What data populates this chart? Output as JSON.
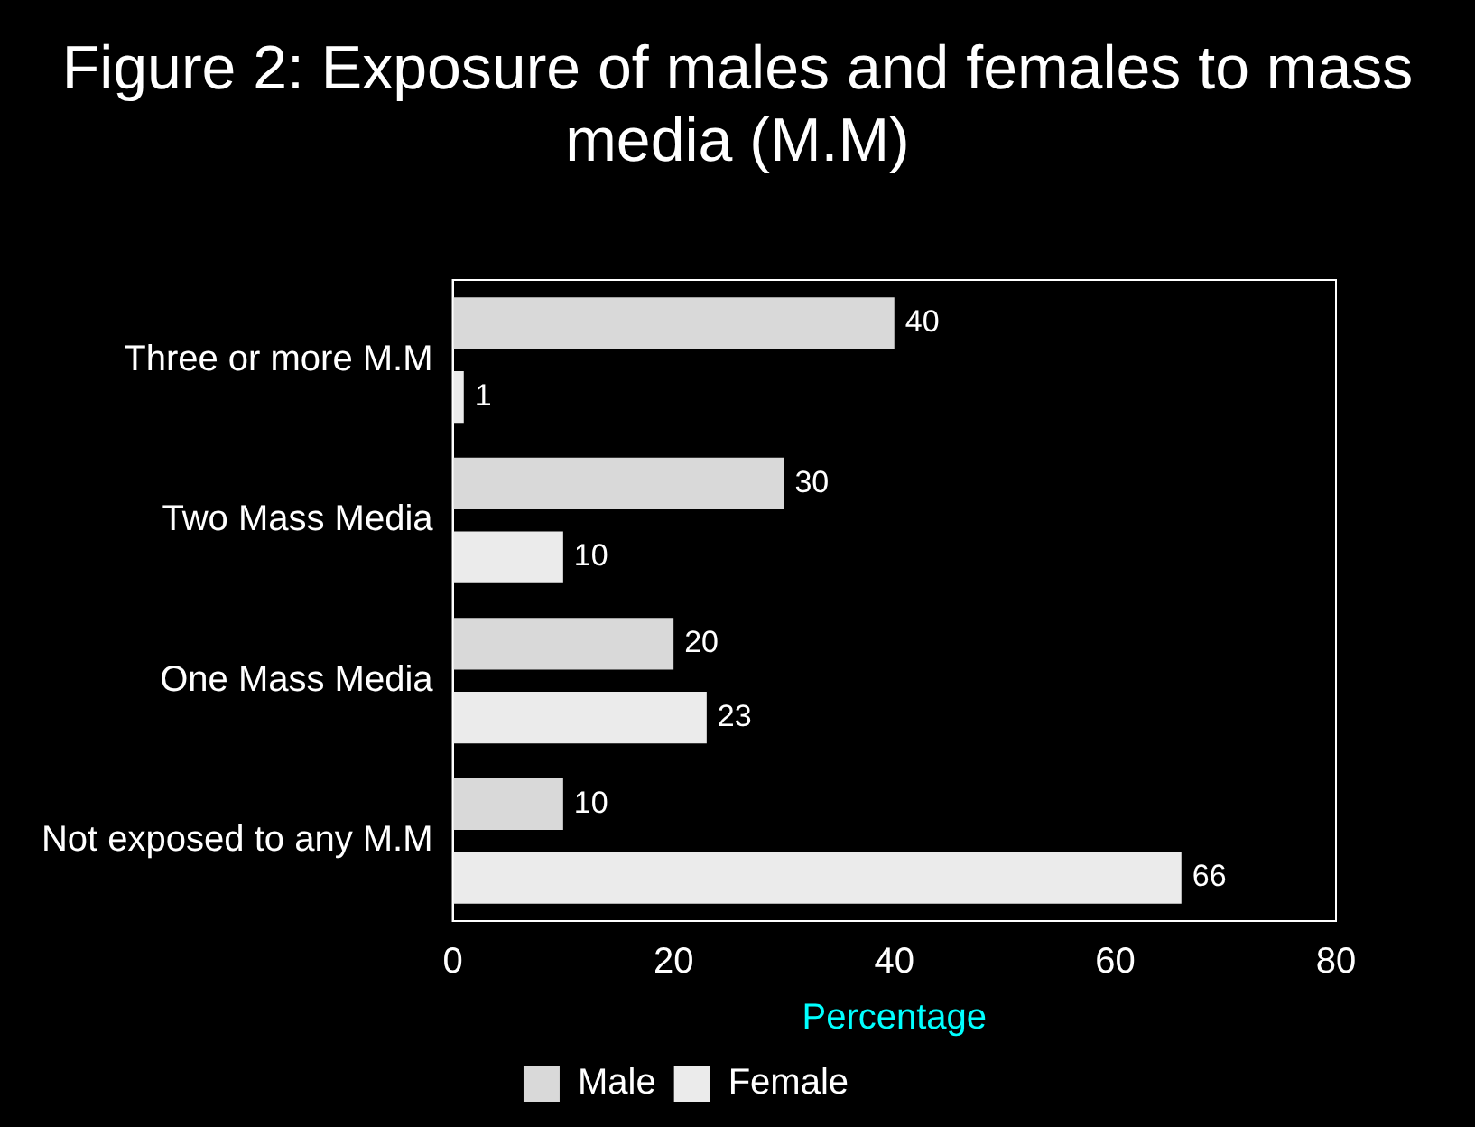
{
  "chart_data": {
    "type": "bar",
    "orientation": "horizontal",
    "title": "Figure 2: Exposure of males and females to mass media (M.M)",
    "xlabel": "Percentage",
    "categories": [
      "Three or more M.M",
      "Two Mass Media",
      "One Mass Media",
      "Not exposed to any M.M"
    ],
    "series": [
      {
        "name": "Male",
        "color": "#d9d9d9",
        "values": [
          40,
          30,
          20,
          10
        ]
      },
      {
        "name": "Female",
        "color": "#ebebeb",
        "values": [
          1,
          10,
          23,
          66
        ]
      }
    ],
    "xlim": [
      0,
      80
    ],
    "xticks": [
      0,
      20,
      40,
      60,
      80
    ],
    "grid": false,
    "legend": "bottom",
    "data_labels": true
  }
}
